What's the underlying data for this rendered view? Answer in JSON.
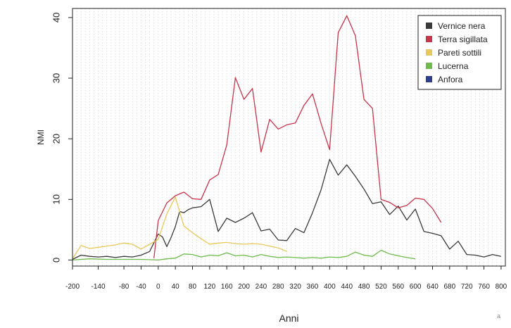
{
  "chart_data": {
    "type": "line",
    "title": "",
    "xlabel": "Anni",
    "ylabel": "NMI",
    "xlim": [
      -200,
      810
    ],
    "ylim": [
      0,
      40
    ],
    "x_ticks": [
      -200,
      -140,
      -80,
      -40,
      0,
      40,
      80,
      120,
      160,
      200,
      240,
      280,
      320,
      360,
      400,
      440,
      480,
      520,
      560,
      600,
      640,
      680,
      720,
      760,
      800
    ],
    "x_tick_labels": [
      "-200",
      "-140",
      "-80",
      "-40",
      "0",
      "40",
      "80",
      "120",
      "160",
      "200",
      "240",
      "280",
      "320",
      "360",
      "400",
      "440",
      "480",
      "520",
      "560",
      "600",
      "640",
      "680",
      "720",
      "760",
      "800"
    ],
    "y_ticks": [
      0,
      10,
      20,
      30,
      40
    ],
    "y_tick_labels": [
      "0",
      "10",
      "20",
      "30",
      "40"
    ],
    "grid": true,
    "legend_position": "top-right",
    "corner_mark": "a",
    "series": [
      {
        "name": "Vernice nera",
        "color": "#3a3a3a",
        "points": [
          [
            -200,
            0.1
          ],
          [
            -180,
            0.8
          ],
          [
            -160,
            0.6
          ],
          [
            -140,
            0.5
          ],
          [
            -120,
            0.6
          ],
          [
            -100,
            0.4
          ],
          [
            -80,
            0.6
          ],
          [
            -60,
            0.5
          ],
          [
            -40,
            0.8
          ],
          [
            -20,
            1.4
          ],
          [
            0,
            4.3
          ],
          [
            10,
            3.8
          ],
          [
            20,
            2.2
          ],
          [
            30,
            3.7
          ],
          [
            40,
            5.5
          ],
          [
            50,
            8.0
          ],
          [
            60,
            7.8
          ],
          [
            70,
            8.3
          ],
          [
            80,
            8.6
          ],
          [
            100,
            8.8
          ],
          [
            120,
            10.0
          ],
          [
            140,
            4.7
          ],
          [
            160,
            6.9
          ],
          [
            180,
            6.2
          ],
          [
            200,
            6.9
          ],
          [
            220,
            7.8
          ],
          [
            240,
            4.8
          ],
          [
            260,
            5.1
          ],
          [
            280,
            3.3
          ],
          [
            300,
            3.2
          ],
          [
            320,
            5.2
          ],
          [
            340,
            4.5
          ],
          [
            360,
            7.8
          ],
          [
            380,
            11.6
          ],
          [
            400,
            16.6
          ],
          [
            420,
            14.0
          ],
          [
            440,
            15.7
          ],
          [
            460,
            13.8
          ],
          [
            480,
            11.7
          ],
          [
            500,
            9.3
          ],
          [
            520,
            9.6
          ],
          [
            540,
            7.5
          ],
          [
            560,
            8.9
          ],
          [
            580,
            6.6
          ],
          [
            600,
            8.4
          ],
          [
            620,
            4.7
          ],
          [
            640,
            4.4
          ],
          [
            660,
            4.0
          ],
          [
            680,
            1.8
          ],
          [
            700,
            3.1
          ],
          [
            720,
            0.9
          ],
          [
            740,
            0.8
          ],
          [
            760,
            0.5
          ],
          [
            780,
            0.9
          ],
          [
            800,
            0.6
          ]
        ]
      },
      {
        "name": "Terra sigillata",
        "color": "#c8344a",
        "points": [
          [
            -10,
            0.3
          ],
          [
            0,
            6.5
          ],
          [
            20,
            9.4
          ],
          [
            40,
            10.6
          ],
          [
            60,
            11.2
          ],
          [
            80,
            10.1
          ],
          [
            100,
            10.0
          ],
          [
            120,
            13.2
          ],
          [
            140,
            14.1
          ],
          [
            160,
            19.0
          ],
          [
            180,
            30.1
          ],
          [
            200,
            26.5
          ],
          [
            220,
            28.3
          ],
          [
            240,
            17.8
          ],
          [
            260,
            23.2
          ],
          [
            280,
            21.6
          ],
          [
            300,
            22.3
          ],
          [
            320,
            22.6
          ],
          [
            340,
            25.5
          ],
          [
            360,
            27.4
          ],
          [
            380,
            22.5
          ],
          [
            400,
            18.2
          ],
          [
            420,
            37.5
          ],
          [
            440,
            40.3
          ],
          [
            460,
            37.0
          ],
          [
            480,
            26.5
          ],
          [
            500,
            25.0
          ],
          [
            520,
            10.0
          ],
          [
            540,
            9.5
          ],
          [
            560,
            8.6
          ],
          [
            580,
            9.0
          ],
          [
            600,
            10.2
          ],
          [
            620,
            10.0
          ],
          [
            640,
            8.5
          ],
          [
            660,
            6.2
          ]
        ]
      },
      {
        "name": "Pareti sottili",
        "color": "#e8c85a",
        "points": [
          [
            -200,
            0.2
          ],
          [
            -180,
            2.4
          ],
          [
            -160,
            1.9
          ],
          [
            -140,
            2.1
          ],
          [
            -120,
            2.3
          ],
          [
            -100,
            2.5
          ],
          [
            -80,
            2.8
          ],
          [
            -60,
            2.6
          ],
          [
            -40,
            1.8
          ],
          [
            -20,
            2.6
          ],
          [
            0,
            3.4
          ],
          [
            20,
            7.6
          ],
          [
            40,
            10.4
          ],
          [
            60,
            5.6
          ],
          [
            80,
            4.5
          ],
          [
            100,
            3.5
          ],
          [
            120,
            2.6
          ],
          [
            140,
            2.8
          ],
          [
            160,
            2.9
          ],
          [
            180,
            2.7
          ],
          [
            200,
            2.6
          ],
          [
            220,
            2.7
          ],
          [
            240,
            2.6
          ],
          [
            260,
            2.3
          ],
          [
            280,
            2.0
          ],
          [
            300,
            1.4
          ]
        ]
      },
      {
        "name": "Lucerna",
        "color": "#6dbb4a",
        "points": [
          [
            -200,
            0.0
          ],
          [
            -160,
            0.2
          ],
          [
            -120,
            0.1
          ],
          [
            -80,
            0.1
          ],
          [
            -40,
            0.1
          ],
          [
            0,
            0.0
          ],
          [
            20,
            0.2
          ],
          [
            40,
            0.3
          ],
          [
            60,
            1.0
          ],
          [
            80,
            0.9
          ],
          [
            100,
            0.5
          ],
          [
            120,
            0.8
          ],
          [
            140,
            0.7
          ],
          [
            160,
            1.2
          ],
          [
            180,
            0.7
          ],
          [
            200,
            0.8
          ],
          [
            220,
            0.5
          ],
          [
            240,
            0.9
          ],
          [
            260,
            0.6
          ],
          [
            280,
            0.4
          ],
          [
            300,
            0.5
          ],
          [
            320,
            0.4
          ],
          [
            340,
            0.3
          ],
          [
            360,
            0.4
          ],
          [
            380,
            0.3
          ],
          [
            400,
            0.5
          ],
          [
            420,
            0.4
          ],
          [
            440,
            0.6
          ],
          [
            460,
            1.3
          ],
          [
            480,
            0.8
          ],
          [
            500,
            0.6
          ],
          [
            520,
            1.6
          ],
          [
            540,
            1.0
          ],
          [
            560,
            0.7
          ],
          [
            580,
            0.4
          ],
          [
            600,
            0.2
          ]
        ]
      },
      {
        "name": "Anfora",
        "color": "#2f3f8f",
        "points": []
      }
    ]
  }
}
